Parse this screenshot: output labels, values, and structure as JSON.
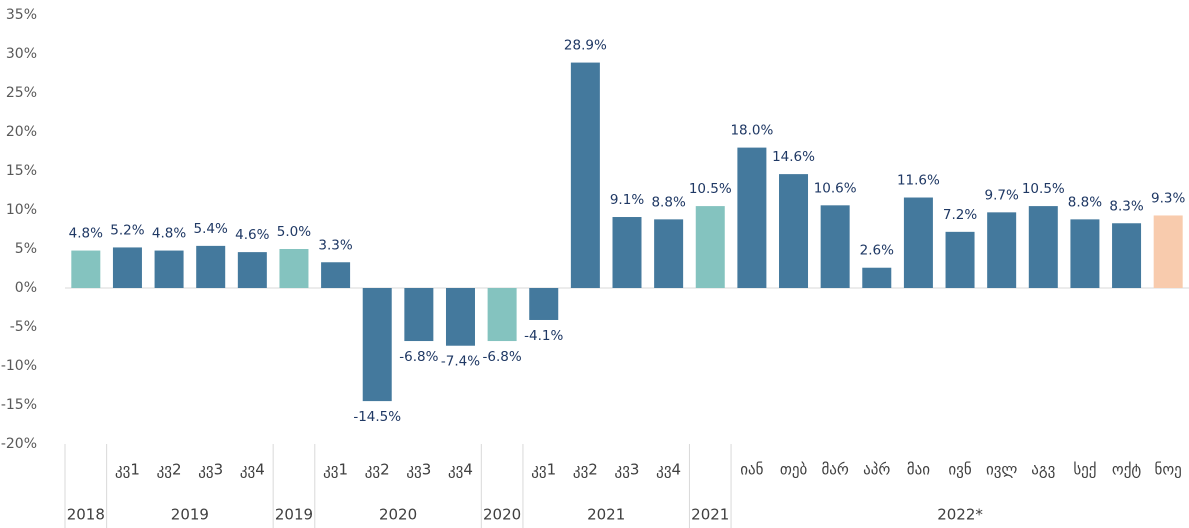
{
  "chart_data": {
    "type": "bar",
    "groups": [
      {
        "label": "2018",
        "categories": [
          null
        ]
      },
      {
        "label": "2019",
        "categories": [
          "კვ1",
          "კვ2",
          "კვ3",
          "კვ4"
        ]
      },
      {
        "label": "2019",
        "categories": [
          null
        ]
      },
      {
        "label": "2020",
        "categories": [
          "კვ1",
          "კვ2",
          "კვ3",
          "კვ4"
        ]
      },
      {
        "label": "2020",
        "categories": [
          null
        ]
      },
      {
        "label": "2021",
        "categories": [
          "კვ1",
          "კვ2",
          "კვ3",
          "კვ4"
        ]
      },
      {
        "label": "2021",
        "categories": [
          null
        ]
      },
      {
        "label": "2022*",
        "categories": [
          "იან",
          "თებ",
          "მარ",
          "აპრ",
          "მაი",
          "ივნ",
          "ივლ",
          "აგვ",
          "სექ",
          "ოქტ",
          "ნოე"
        ]
      }
    ],
    "values": [
      4.8,
      5.2,
      4.8,
      5.4,
      4.6,
      5.0,
      3.3,
      -14.5,
      -6.8,
      -7.4,
      -6.8,
      -4.1,
      28.9,
      9.1,
      8.8,
      10.5,
      18.0,
      14.6,
      10.6,
      2.6,
      11.6,
      7.2,
      9.7,
      10.5,
      8.8,
      8.3,
      9.3
    ],
    "value_labels": [
      "4.8%",
      "5.2%",
      "4.8%",
      "5.4%",
      "4.6%",
      "5.0%",
      "3.3%",
      "-14.5%",
      "-6.8%",
      "-7.4%",
      "-6.8%",
      "-4.1%",
      "28.9%",
      "9.1%",
      "8.8%",
      "10.5%",
      "18.0%",
      "14.6%",
      "10.6%",
      "2.6%",
      "11.6%",
      "7.2%",
      "9.7%",
      "10.5%",
      "8.8%",
      "8.3%",
      "9.3%"
    ],
    "colors": [
      "#84c3bf",
      "#44799d",
      "#44799d",
      "#44799d",
      "#44799d",
      "#84c3bf",
      "#44799d",
      "#44799d",
      "#44799d",
      "#44799d",
      "#84c3bf",
      "#44799d",
      "#44799d",
      "#44799d",
      "#44799d",
      "#84c3bf",
      "#44799d",
      "#44799d",
      "#44799d",
      "#44799d",
      "#44799d",
      "#44799d",
      "#44799d",
      "#44799d",
      "#44799d",
      "#44799d",
      "#f8cbad"
    ],
    "ylim": [
      -20,
      35
    ],
    "yticks": [
      {
        "value": -20,
        "label": "-20%"
      },
      {
        "value": -15,
        "label": "-15%"
      },
      {
        "value": -10,
        "label": "-10%"
      },
      {
        "value": -5,
        "label": "-5%"
      },
      {
        "value": 0,
        "label": "0%"
      },
      {
        "value": 5,
        "label": "5%"
      },
      {
        "value": 10,
        "label": "10%"
      },
      {
        "value": 15,
        "label": "15%"
      },
      {
        "value": 20,
        "label": "20%"
      },
      {
        "value": 25,
        "label": "25%"
      },
      {
        "value": 30,
        "label": "30%"
      },
      {
        "value": 35,
        "label": "35%"
      }
    ],
    "grid": false
  }
}
